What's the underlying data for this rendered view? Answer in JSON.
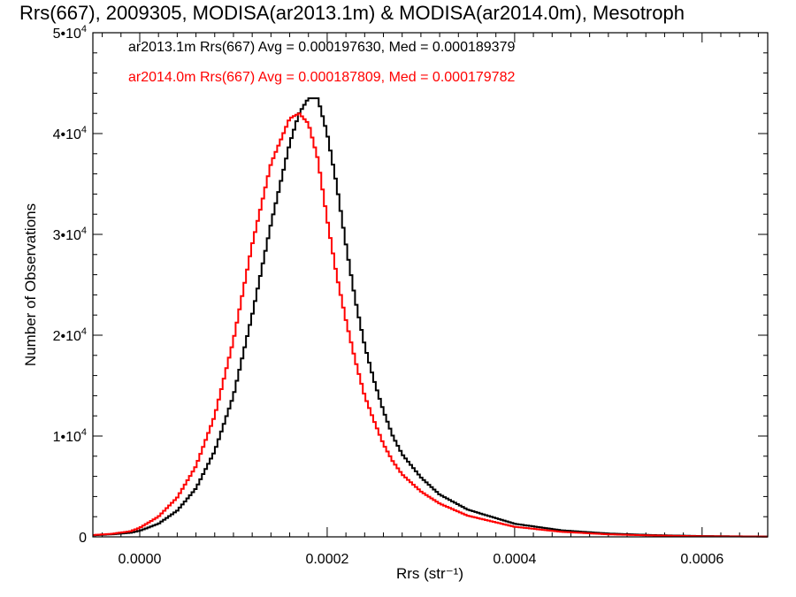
{
  "chart_data": {
    "type": "line",
    "title": "Rrs(667), 2009305, MODISA(ar2013.1m) & MODISA(ar2014.0m), Mesotroph",
    "xlabel": "Rrs (str⁻¹)",
    "ylabel": "Number of Observations",
    "xlim": [
      -5e-05,
      0.00067
    ],
    "ylim": [
      0,
      50000
    ],
    "xticks": [
      {
        "value": 0.0,
        "label": "0.0000"
      },
      {
        "value": 0.0002,
        "label": "0.0002"
      },
      {
        "value": 0.0004,
        "label": "0.0004"
      },
      {
        "value": 0.0006,
        "label": "0.0006"
      }
    ],
    "yticks": [
      {
        "value": 0,
        "mant": "0",
        "exp": ""
      },
      {
        "value": 10000,
        "mant": "1•10",
        "exp": "4"
      },
      {
        "value": 20000,
        "mant": "2•10",
        "exp": "4"
      },
      {
        "value": 30000,
        "mant": "3•10",
        "exp": "4"
      },
      {
        "value": 40000,
        "mant": "4•10",
        "exp": "4"
      },
      {
        "value": 50000,
        "mant": "5•10",
        "exp": "4"
      }
    ],
    "annotations": [
      {
        "text": "ar2013.1m Rrs(667) Avg = 0.000197630, Med = 0.000189379",
        "color": "#000000"
      },
      {
        "text": "ar2014.0m Rrs(667) Avg = 0.000187809, Med = 0.000179782",
        "color": "#ff0000"
      }
    ],
    "series": [
      {
        "color": "#000000",
        "x": [
          -5e-05,
          -3e-05,
          -1e-05,
          0.0,
          2e-05,
          4e-05,
          6e-05,
          8e-05,
          0.0001,
          0.00012,
          0.00014,
          0.00016,
          0.00017,
          0.00018,
          0.00019,
          0.0002,
          0.00021,
          0.00022,
          0.00023,
          0.00024,
          0.00025,
          0.00026,
          0.00027,
          0.00028,
          0.0003,
          0.00032,
          0.00035,
          0.0004,
          0.00045,
          0.0005,
          0.00055,
          0.0006,
          0.00067
        ],
        "y": [
          150,
          250,
          400,
          600,
          1300,
          2600,
          4800,
          8500,
          14000,
          22000,
          31000,
          39000,
          42000,
          43500,
          43500,
          40000,
          35000,
          29000,
          23500,
          19000,
          15500,
          12500,
          10000,
          8200,
          5900,
          4200,
          2700,
          1300,
          650,
          330,
          170,
          80,
          30
        ]
      },
      {
        "color": "#ff0000",
        "x": [
          -5e-05,
          -3e-05,
          -1e-05,
          0.0,
          2e-05,
          4e-05,
          6e-05,
          8e-05,
          0.0001,
          0.00012,
          0.00014,
          0.00016,
          0.00017,
          0.00018,
          0.00019,
          0.0002,
          0.00021,
          0.00022,
          0.00023,
          0.00024,
          0.00025,
          0.00026,
          0.00027,
          0.00028,
          0.0003,
          0.00032,
          0.00035,
          0.0004,
          0.00045,
          0.0005,
          0.00055,
          0.0006,
          0.00067
        ],
        "y": [
          180,
          300,
          550,
          900,
          2000,
          3900,
          7000,
          12000,
          19500,
          29000,
          37000,
          41500,
          42000,
          41000,
          37500,
          31500,
          26000,
          21500,
          17500,
          14000,
          11500,
          9200,
          7500,
          6200,
          4500,
          3300,
          2100,
          1000,
          500,
          250,
          130,
          60,
          25
        ]
      }
    ]
  }
}
